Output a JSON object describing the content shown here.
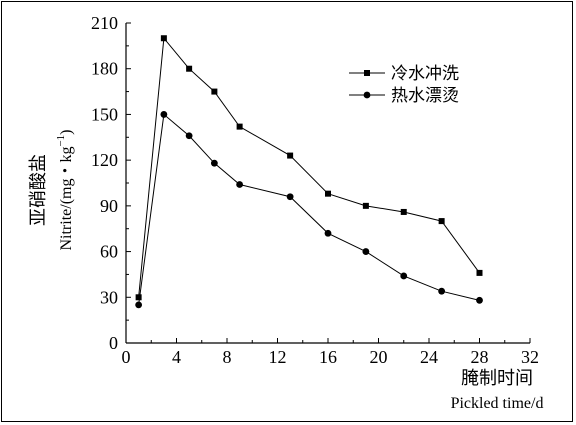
{
  "chart_data": {
    "type": "line",
    "x": [
      1,
      3,
      5,
      7,
      9,
      13,
      16,
      19,
      22,
      25,
      28
    ],
    "series": [
      {
        "name": "冷水冲洗",
        "marker": "square",
        "values": [
          30,
          200,
          180,
          165,
          142,
          123,
          98,
          90,
          86,
          80,
          46
        ]
      },
      {
        "name": "热水漂烫",
        "marker": "circle",
        "values": [
          25,
          150,
          136,
          118,
          104,
          96,
          72,
          60,
          44,
          34,
          28
        ]
      }
    ],
    "xlabel_cn": "腌制时间",
    "xlabel_en": "Pickled time/d",
    "ylabel_cn": "亚硝酸盐",
    "ylabel_en": "Nitrite/(mg・kg",
    "ylabel_en_sup": "−1",
    "ylabel_en_close": ")",
    "xlim": [
      0,
      32
    ],
    "ylim": [
      0,
      210
    ],
    "xticks": [
      0,
      4,
      8,
      12,
      16,
      20,
      24,
      28,
      32
    ],
    "yticks": [
      0,
      30,
      60,
      90,
      120,
      150,
      180,
      210
    ],
    "grid": false,
    "legend_position": "top-right",
    "line_color": "#000000"
  }
}
